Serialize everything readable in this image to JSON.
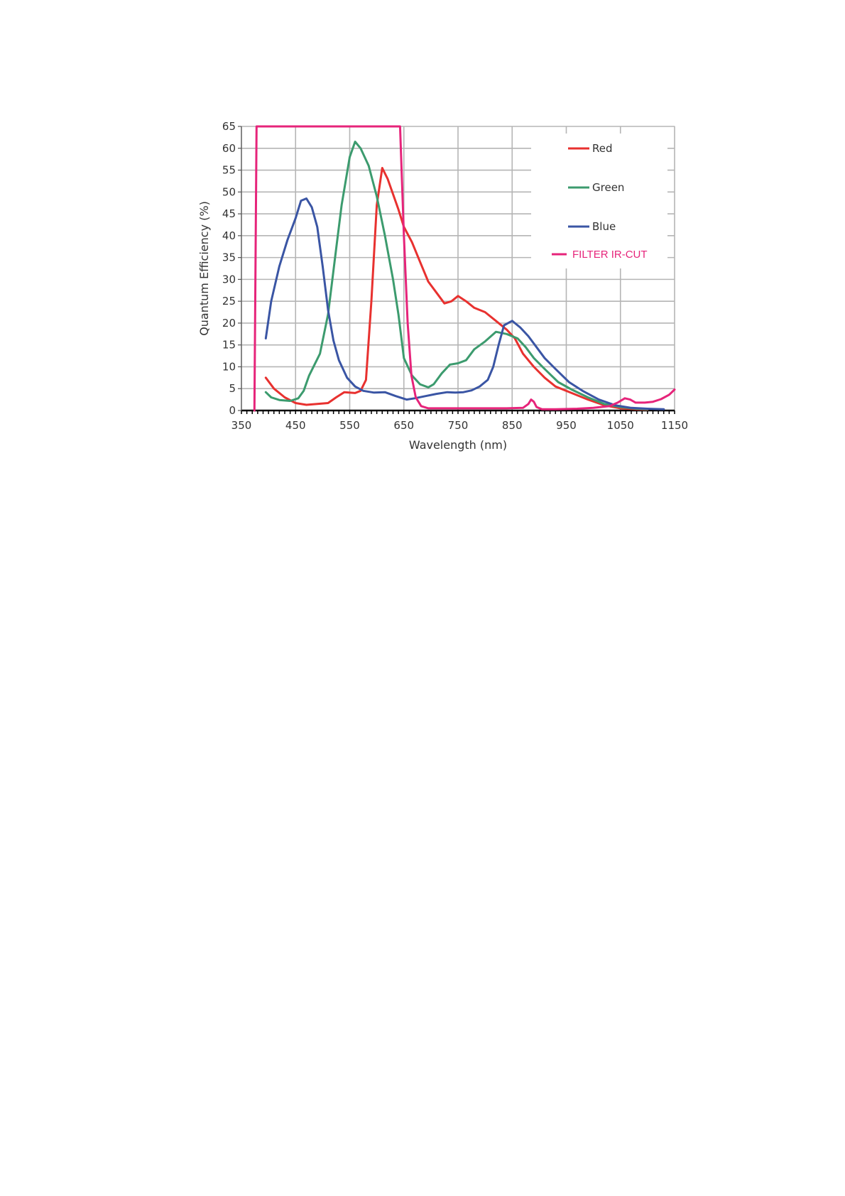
{
  "chart_data": {
    "type": "line",
    "title": "",
    "xlabel": "Wavelength (nm)",
    "ylabel": "Quantum Efficiency (%)",
    "xlim": [
      350,
      1150
    ],
    "ylim": [
      0,
      65
    ],
    "xticks": [
      350,
      450,
      550,
      650,
      750,
      850,
      950,
      1050,
      1150
    ],
    "yticks": [
      0,
      5,
      10,
      15,
      20,
      25,
      30,
      35,
      40,
      45,
      50,
      55,
      60,
      65
    ],
    "grid": true,
    "legend_position": "top-right",
    "series": [
      {
        "name": "Red",
        "color": "#e8312f",
        "points": [
          [
            395,
            7.5
          ],
          [
            410,
            5
          ],
          [
            430,
            3
          ],
          [
            450,
            1.7
          ],
          [
            470,
            1.3
          ],
          [
            490,
            1.5
          ],
          [
            510,
            1.7
          ],
          [
            525,
            3
          ],
          [
            540,
            4.2
          ],
          [
            560,
            4
          ],
          [
            570,
            4.5
          ],
          [
            580,
            7
          ],
          [
            590,
            25
          ],
          [
            600,
            47
          ],
          [
            610,
            55.5
          ],
          [
            620,
            53
          ],
          [
            640,
            46
          ],
          [
            650,
            42
          ],
          [
            665,
            38.5
          ],
          [
            680,
            34
          ],
          [
            695,
            29.5
          ],
          [
            710,
            27
          ],
          [
            725,
            24.5
          ],
          [
            738,
            25
          ],
          [
            750,
            26.2
          ],
          [
            765,
            25
          ],
          [
            780,
            23.5
          ],
          [
            800,
            22.5
          ],
          [
            820,
            20.5
          ],
          [
            840,
            18.5
          ],
          [
            855,
            16.5
          ],
          [
            870,
            13
          ],
          [
            890,
            10
          ],
          [
            910,
            7.5
          ],
          [
            930,
            5.5
          ],
          [
            960,
            4
          ],
          [
            990,
            2.5
          ],
          [
            1020,
            1.2
          ],
          [
            1050,
            0.5
          ],
          [
            1080,
            0.3
          ],
          [
            1100,
            0.2
          ]
        ]
      },
      {
        "name": "Green",
        "color": "#3c9b6e",
        "points": [
          [
            395,
            4.2
          ],
          [
            405,
            3
          ],
          [
            420,
            2.4
          ],
          [
            440,
            2.2
          ],
          [
            455,
            2.8
          ],
          [
            465,
            4.5
          ],
          [
            475,
            8
          ],
          [
            495,
            13
          ],
          [
            510,
            22
          ],
          [
            525,
            37
          ],
          [
            535,
            47
          ],
          [
            550,
            58
          ],
          [
            560,
            61.5
          ],
          [
            570,
            60
          ],
          [
            585,
            56
          ],
          [
            600,
            49
          ],
          [
            615,
            40
          ],
          [
            630,
            30
          ],
          [
            640,
            22
          ],
          [
            650,
            12
          ],
          [
            665,
            8
          ],
          [
            680,
            6
          ],
          [
            695,
            5.3
          ],
          [
            705,
            6
          ],
          [
            720,
            8.5
          ],
          [
            735,
            10.5
          ],
          [
            750,
            10.8
          ],
          [
            765,
            11.5
          ],
          [
            780,
            14
          ],
          [
            800,
            15.8
          ],
          [
            820,
            18
          ],
          [
            840,
            17.5
          ],
          [
            860,
            16.5
          ],
          [
            875,
            14.5
          ],
          [
            890,
            12
          ],
          [
            910,
            9.5
          ],
          [
            935,
            6.5
          ],
          [
            960,
            4.8
          ],
          [
            990,
            3
          ],
          [
            1020,
            1.5
          ],
          [
            1050,
            0.8
          ],
          [
            1080,
            0.4
          ],
          [
            1100,
            0.3
          ]
        ]
      },
      {
        "name": "Blue",
        "color": "#3a55a4",
        "points": [
          [
            395,
            16.5
          ],
          [
            405,
            25
          ],
          [
            420,
            33
          ],
          [
            435,
            39
          ],
          [
            450,
            44
          ],
          [
            460,
            48
          ],
          [
            470,
            48.5
          ],
          [
            480,
            46.5
          ],
          [
            490,
            42
          ],
          [
            500,
            33
          ],
          [
            510,
            23
          ],
          [
            520,
            16
          ],
          [
            530,
            11.5
          ],
          [
            545,
            7.5
          ],
          [
            560,
            5.5
          ],
          [
            575,
            4.5
          ],
          [
            595,
            4.1
          ],
          [
            615,
            4.2
          ],
          [
            635,
            3.3
          ],
          [
            655,
            2.5
          ],
          [
            670,
            2.8
          ],
          [
            690,
            3.3
          ],
          [
            710,
            3.8
          ],
          [
            730,
            4.2
          ],
          [
            745,
            4.1
          ],
          [
            760,
            4.2
          ],
          [
            775,
            4.6
          ],
          [
            790,
            5.5
          ],
          [
            805,
            7
          ],
          [
            815,
            10
          ],
          [
            825,
            15
          ],
          [
            835,
            19.5
          ],
          [
            850,
            20.5
          ],
          [
            865,
            19
          ],
          [
            880,
            17
          ],
          [
            895,
            14.5
          ],
          [
            910,
            12
          ],
          [
            930,
            9.5
          ],
          [
            955,
            6.5
          ],
          [
            980,
            4.5
          ],
          [
            1010,
            2.5
          ],
          [
            1040,
            1.2
          ],
          [
            1070,
            0.6
          ],
          [
            1100,
            0.4
          ],
          [
            1130,
            0.3
          ]
        ]
      },
      {
        "name": "FILTER IR-CUT",
        "color": "#e6247a",
        "points": [
          [
            374,
            0
          ],
          [
            378,
            65
          ],
          [
            643,
            65
          ],
          [
            650,
            40
          ],
          [
            657,
            20
          ],
          [
            664,
            8
          ],
          [
            672,
            3
          ],
          [
            682,
            1
          ],
          [
            695,
            0.5
          ],
          [
            715,
            0.5
          ],
          [
            760,
            0.5
          ],
          [
            800,
            0.5
          ],
          [
            840,
            0.5
          ],
          [
            870,
            0.6
          ],
          [
            880,
            1.5
          ],
          [
            885,
            2.5
          ],
          [
            890,
            2
          ],
          [
            895,
            0.8
          ],
          [
            905,
            0.3
          ],
          [
            930,
            0.3
          ],
          [
            970,
            0.4
          ],
          [
            1000,
            0.6
          ],
          [
            1030,
            1
          ],
          [
            1045,
            1.8
          ],
          [
            1058,
            2.8
          ],
          [
            1068,
            2.5
          ],
          [
            1078,
            1.8
          ],
          [
            1095,
            1.8
          ],
          [
            1110,
            2
          ],
          [
            1125,
            2.6
          ],
          [
            1140,
            3.6
          ],
          [
            1150,
            4.8
          ]
        ]
      }
    ]
  }
}
